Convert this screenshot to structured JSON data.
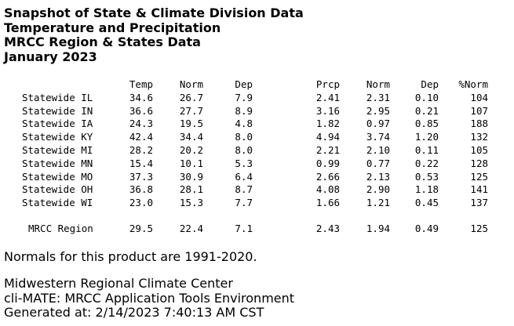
{
  "titles": [
    "Snapshot of State & Climate Division Data",
    "Temperature and Precipitation",
    "MRCC Region & States Data",
    "January 2023"
  ],
  "headers": {
    "temp": "Temp",
    "temp_norm": "Norm",
    "temp_dep": "Dep",
    "prcp": "Prcp",
    "prcp_norm": "Norm",
    "prcp_dep": "Dep",
    "pct_norm": "%Norm"
  },
  "rows": [
    {
      "label": "Statewide IL",
      "temp": "34.6",
      "temp_norm": "26.7",
      "temp_dep": "7.9",
      "prcp": "2.41",
      "prcp_norm": "2.31",
      "prcp_dep": "0.10",
      "pct_norm": "104"
    },
    {
      "label": "Statewide IN",
      "temp": "36.6",
      "temp_norm": "27.7",
      "temp_dep": "8.9",
      "prcp": "3.16",
      "prcp_norm": "2.95",
      "prcp_dep": "0.21",
      "pct_norm": "107"
    },
    {
      "label": "Statewide IA",
      "temp": "24.3",
      "temp_norm": "19.5",
      "temp_dep": "4.8",
      "prcp": "1.82",
      "prcp_norm": "0.97",
      "prcp_dep": "0.85",
      "pct_norm": "188"
    },
    {
      "label": "Statewide KY",
      "temp": "42.4",
      "temp_norm": "34.4",
      "temp_dep": "8.0",
      "prcp": "4.94",
      "prcp_norm": "3.74",
      "prcp_dep": "1.20",
      "pct_norm": "132"
    },
    {
      "label": "Statewide MI",
      "temp": "28.2",
      "temp_norm": "20.2",
      "temp_dep": "8.0",
      "prcp": "2.21",
      "prcp_norm": "2.10",
      "prcp_dep": "0.11",
      "pct_norm": "105"
    },
    {
      "label": "Statewide MN",
      "temp": "15.4",
      "temp_norm": "10.1",
      "temp_dep": "5.3",
      "prcp": "0.99",
      "prcp_norm": "0.77",
      "prcp_dep": "0.22",
      "pct_norm": "128"
    },
    {
      "label": "Statewide MO",
      "temp": "37.3",
      "temp_norm": "30.9",
      "temp_dep": "6.4",
      "prcp": "2.66",
      "prcp_norm": "2.13",
      "prcp_dep": "0.53",
      "pct_norm": "125"
    },
    {
      "label": "Statewide OH",
      "temp": "36.8",
      "temp_norm": "28.1",
      "temp_dep": "8.7",
      "prcp": "4.08",
      "prcp_norm": "2.90",
      "prcp_dep": "1.18",
      "pct_norm": "141"
    },
    {
      "label": "Statewide WI",
      "temp": "23.0",
      "temp_norm": "15.3",
      "temp_dep": "7.7",
      "prcp": "1.66",
      "prcp_norm": "1.21",
      "prcp_dep": "0.45",
      "pct_norm": "137"
    }
  ],
  "region": {
    "label": "MRCC Region",
    "temp": "29.5",
    "temp_norm": "22.4",
    "temp_dep": "7.1",
    "prcp": "2.43",
    "prcp_norm": "1.94",
    "prcp_dep": "0.49",
    "pct_norm": "125"
  },
  "note": "Normals for this product are 1991-2020.",
  "credits": [
    "Midwestern Regional Climate Center",
    "cli-MATE: MRCC Application Tools Environment",
    "Generated at: 2/14/2023 7:40:13 AM CST"
  ]
}
